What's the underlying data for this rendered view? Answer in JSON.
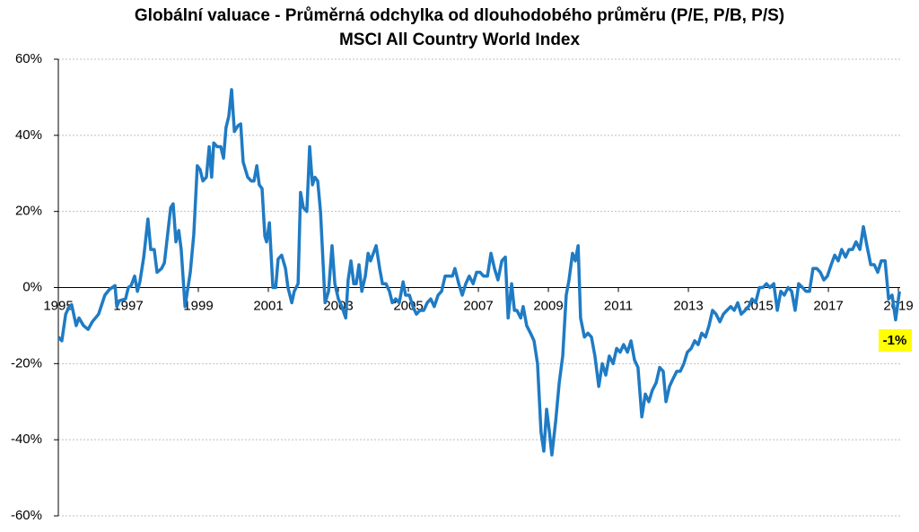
{
  "chart_data": {
    "type": "line",
    "title": "Globální valuace - Průměrná odchylka od dlouhodobého průměru (P/E, P/B, P/S)",
    "subtitle": "MSCI All Country World Index",
    "annotation": "-1%",
    "xlim": [
      1995,
      2019.05
    ],
    "xticks": [
      1995,
      1997,
      1999,
      2001,
      2003,
      2005,
      2007,
      2009,
      2011,
      2013,
      2015,
      2017,
      2019
    ],
    "ylim": [
      -60,
      60
    ],
    "yticks": [
      {
        "value": -60,
        "label": "-60%"
      },
      {
        "value": -40,
        "label": "-40%"
      },
      {
        "value": -20,
        "label": "-20%"
      },
      {
        "value": 0,
        "label": "0%"
      },
      {
        "value": 20,
        "label": "20%"
      },
      {
        "value": 40,
        "label": "40%"
      },
      {
        "value": 60,
        "label": "60%"
      }
    ],
    "grid": true,
    "x": [
      1995.0,
      1995.1,
      1995.21,
      1995.31,
      1995.38,
      1995.51,
      1995.59,
      1995.72,
      1995.85,
      1995.97,
      1996.15,
      1996.33,
      1996.46,
      1996.62,
      1996.67,
      1996.74,
      1996.92,
      1997.0,
      1997.08,
      1997.18,
      1997.26,
      1997.33,
      1997.44,
      1997.56,
      1997.64,
      1997.74,
      1997.82,
      1997.95,
      1998.03,
      1998.21,
      1998.28,
      1998.36,
      1998.44,
      1998.51,
      1998.62,
      1998.77,
      1998.87,
      1998.97,
      1999.05,
      1999.13,
      1999.23,
      1999.31,
      1999.38,
      1999.44,
      1999.54,
      1999.64,
      1999.72,
      1999.79,
      1999.87,
      1999.95,
      2000.03,
      2000.13,
      2000.21,
      2000.28,
      2000.41,
      2000.51,
      2000.59,
      2000.67,
      2000.74,
      2000.82,
      2000.9,
      2000.95,
      2001.03,
      2001.13,
      2001.21,
      2001.28,
      2001.38,
      2001.49,
      2001.56,
      2001.67,
      2001.74,
      2001.85,
      2001.92,
      2002.0,
      2002.1,
      2002.18,
      2002.26,
      2002.33,
      2002.41,
      2002.49,
      2002.62,
      2002.72,
      2002.82,
      2002.9,
      2003.0,
      2003.1,
      2003.21,
      2003.28,
      2003.36,
      2003.44,
      2003.51,
      2003.59,
      2003.67,
      2003.77,
      2003.85,
      2003.92,
      2004.0,
      2004.08,
      2004.18,
      2004.26,
      2004.36,
      2004.46,
      2004.54,
      2004.64,
      2004.74,
      2004.85,
      2004.92,
      2005.03,
      2005.13,
      2005.23,
      2005.33,
      2005.44,
      2005.54,
      2005.64,
      2005.74,
      2005.85,
      2005.95,
      2006.05,
      2006.15,
      2006.26,
      2006.33,
      2006.44,
      2006.54,
      2006.64,
      2006.74,
      2006.85,
      2006.95,
      2007.05,
      2007.15,
      2007.26,
      2007.36,
      2007.46,
      2007.56,
      2007.67,
      2007.77,
      2007.85,
      2007.95,
      2008.03,
      2008.1,
      2008.21,
      2008.28,
      2008.38,
      2008.49,
      2008.59,
      2008.69,
      2008.79,
      2008.87,
      2008.95,
      2009.03,
      2009.1,
      2009.21,
      2009.31,
      2009.41,
      2009.51,
      2009.59,
      2009.69,
      2009.77,
      2009.85,
      2009.92,
      2010.03,
      2010.13,
      2010.23,
      2010.33,
      2010.44,
      2010.54,
      2010.64,
      2010.74,
      2010.85,
      2010.95,
      2011.05,
      2011.15,
      2011.26,
      2011.36,
      2011.46,
      2011.56,
      2011.67,
      2011.77,
      2011.87,
      2011.97,
      2012.08,
      2012.18,
      2012.28,
      2012.36,
      2012.46,
      2012.56,
      2012.67,
      2012.77,
      2012.87,
      2012.97,
      2013.08,
      2013.18,
      2013.28,
      2013.38,
      2013.49,
      2013.59,
      2013.69,
      2013.79,
      2013.9,
      2014.0,
      2014.1,
      2014.21,
      2014.31,
      2014.41,
      2014.51,
      2014.62,
      2014.72,
      2014.82,
      2014.92,
      2015.03,
      2015.13,
      2015.23,
      2015.33,
      2015.44,
      2015.54,
      2015.64,
      2015.74,
      2015.85,
      2015.95,
      2016.05,
      2016.15,
      2016.26,
      2016.36,
      2016.46,
      2016.56,
      2016.67,
      2016.77,
      2016.87,
      2016.97,
      2017.08,
      2017.18,
      2017.28,
      2017.38,
      2017.49,
      2017.59,
      2017.69,
      2017.79,
      2017.9,
      2018.0,
      2018.1,
      2018.21,
      2018.31,
      2018.41,
      2018.51,
      2018.62,
      2018.72,
      2018.82,
      2018.92,
      2019.03
    ],
    "series": [
      {
        "color": "#1f7bc4",
        "values": [
          -13,
          -14,
          -7,
          -5,
          -4.5,
          -10,
          -8,
          -10,
          -11,
          -9,
          -7,
          -2,
          -0.5,
          0.5,
          -5,
          -3.5,
          -3,
          0,
          0.5,
          3,
          -1,
          1.5,
          8,
          18,
          10,
          10,
          4,
          5,
          6.5,
          21,
          22,
          12,
          15,
          10,
          -5,
          4,
          14,
          32,
          31,
          28,
          29,
          37,
          29,
          38,
          37,
          37,
          34,
          42,
          45,
          52,
          41,
          42.5,
          43,
          33,
          29,
          28,
          28,
          32,
          27,
          26,
          13.5,
          12,
          17,
          0,
          0,
          7.5,
          8.5,
          5,
          0,
          -4,
          -1,
          1,
          25,
          21,
          20,
          37,
          27,
          29,
          28,
          20,
          -4,
          -1,
          11,
          1,
          -3,
          -5,
          -8,
          2,
          7,
          1,
          1,
          6,
          -1,
          3,
          9,
          7,
          9,
          11,
          5,
          1,
          1,
          -1,
          -4,
          -3,
          -4,
          1.5,
          -2,
          -2,
          -5,
          -7,
          -6,
          -6,
          -4,
          -3,
          -5,
          -2,
          -1,
          3,
          3,
          3,
          5,
          1,
          -2,
          1,
          3,
          1,
          4,
          4,
          3,
          3,
          9,
          5,
          2,
          7,
          8,
          -8,
          1,
          -6,
          -6,
          -8,
          -5,
          -10,
          -12,
          -14,
          -20,
          -38,
          -43,
          -32,
          -38,
          -44,
          -35,
          -25,
          -18,
          -2,
          2,
          9,
          7,
          11,
          -8,
          -13,
          -12,
          -13,
          -18,
          -26,
          -20,
          -23,
          -18,
          -20,
          -16,
          -17,
          -15,
          -17,
          -14,
          -19,
          -21,
          -34,
          -28,
          -30,
          -27,
          -25,
          -21,
          -22,
          -30,
          -26,
          -24,
          -22,
          -22,
          -20,
          -17,
          -16,
          -14,
          -15,
          -12,
          -13,
          -10,
          -6,
          -7,
          -9,
          -7,
          -6,
          -5,
          -6,
          -4,
          -7,
          -6,
          -5,
          -3,
          -4,
          0,
          0,
          1,
          0,
          1,
          -6,
          -1,
          -2,
          0,
          -1,
          -6,
          1,
          0,
          -1,
          -1,
          5,
          5,
          4,
          2,
          3,
          6,
          8.5,
          7,
          10,
          8,
          10,
          10,
          12,
          10,
          16,
          11,
          6,
          6,
          4,
          7,
          7,
          -3,
          -2,
          -8.5,
          -1
        ]
      }
    ]
  }
}
